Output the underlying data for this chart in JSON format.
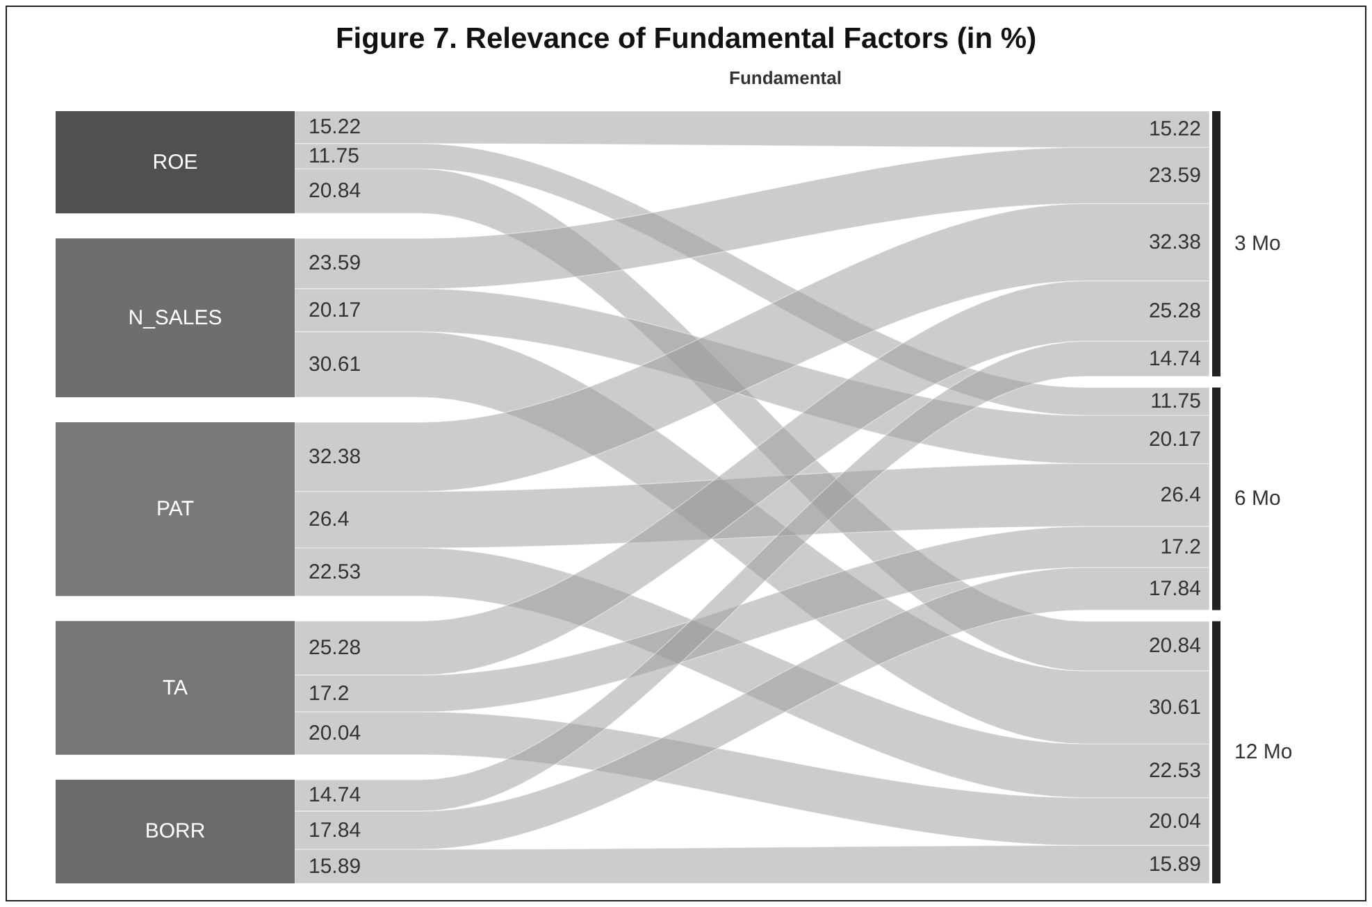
{
  "chart_data": {
    "type": "other",
    "title": "Figure 7. Relevance of Fundamental Factors (in %)",
    "subtitle": "Fundamental",
    "data_labels": true,
    "categories": [
      "ROE",
      "N_SALES",
      "PAT",
      "TA",
      "BORR"
    ],
    "annotations": [
      "15.22",
      "23.59",
      "32.38",
      "25.28",
      "14.74",
      "11.75",
      "20.17",
      "26.4",
      "17.2",
      "17.84",
      "20.84",
      "30.61",
      "22.53",
      "20.04",
      "15.89"
    ],
    "colors": [
      "#505050",
      "#6e6e6e",
      "#7a7a7a",
      "#767676",
      "#6a6a6a"
    ],
    "series": [
      {
        "name": "3 Mo",
        "color": "#9a9a9a",
        "values": [
          15.22,
          23.59,
          32.38,
          25.28,
          14.74
        ]
      },
      {
        "name": "6 Mo",
        "color": "#9a9a9a",
        "values": [
          11.75,
          20.17,
          26.4,
          17.2,
          17.84
        ]
      },
      {
        "name": "12 Mo",
        "color": "#9a9a9a",
        "values": [
          20.84,
          30.61,
          22.53,
          20.04,
          15.89
        ]
      }
    ]
  }
}
